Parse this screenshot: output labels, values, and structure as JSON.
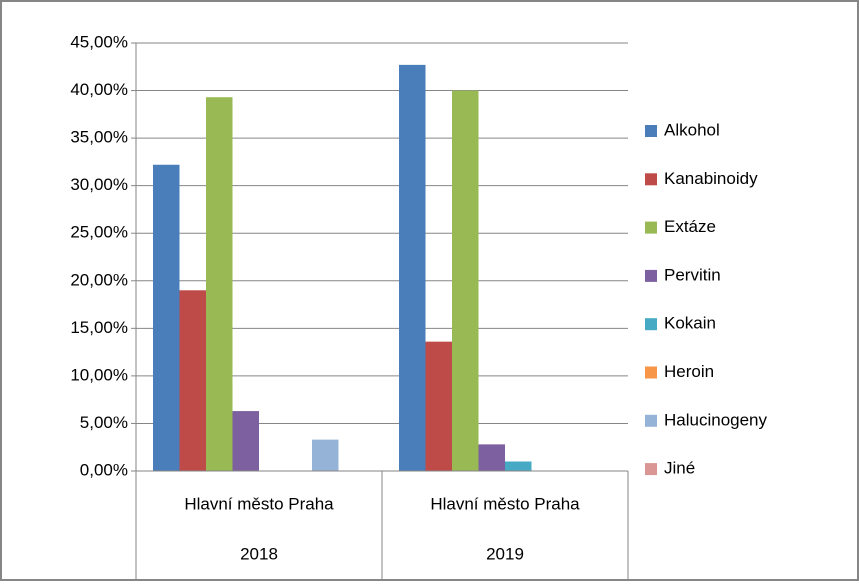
{
  "chart_data": {
    "type": "bar",
    "categories": [
      "Hlavní město Praha",
      "Hlavní město Praha"
    ],
    "category_groups": [
      "2018",
      "2019"
    ],
    "series": [
      {
        "name": "Alkohol",
        "color": "#4a7ebb",
        "values": [
          32.2,
          42.7
        ]
      },
      {
        "name": "Kanabinoidy",
        "color": "#be4b48",
        "values": [
          19.0,
          13.6
        ]
      },
      {
        "name": "Extáze",
        "color": "#98b954",
        "values": [
          39.3,
          40.0
        ]
      },
      {
        "name": "Pervitin",
        "color": "#7d60a0",
        "values": [
          6.3,
          2.8
        ]
      },
      {
        "name": "Kokain",
        "color": "#46aac5",
        "values": [
          0,
          1.0
        ]
      },
      {
        "name": "Heroin",
        "color": "#f79646",
        "values": [
          0,
          0
        ]
      },
      {
        "name": "Halucinogeny",
        "color": "#95b3d7",
        "values": [
          3.3,
          0
        ]
      },
      {
        "name": "Jiné",
        "color": "#d99694",
        "values": [
          0,
          0
        ]
      }
    ],
    "ylim": [
      0,
      45
    ],
    "yticks": [
      {
        "value": 0,
        "label": "0,00%"
      },
      {
        "value": 5,
        "label": "5,00%"
      },
      {
        "value": 10,
        "label": "10,00%"
      },
      {
        "value": 15,
        "label": "15,00%"
      },
      {
        "value": 20,
        "label": "20,00%"
      },
      {
        "value": 25,
        "label": "25,00%"
      },
      {
        "value": 30,
        "label": "30,00%"
      },
      {
        "value": 35,
        "label": "35,00%"
      },
      {
        "value": 40,
        "label": "40,00%"
      },
      {
        "value": 45,
        "label": "45,00%"
      }
    ],
    "grid": true,
    "legend": "right"
  }
}
